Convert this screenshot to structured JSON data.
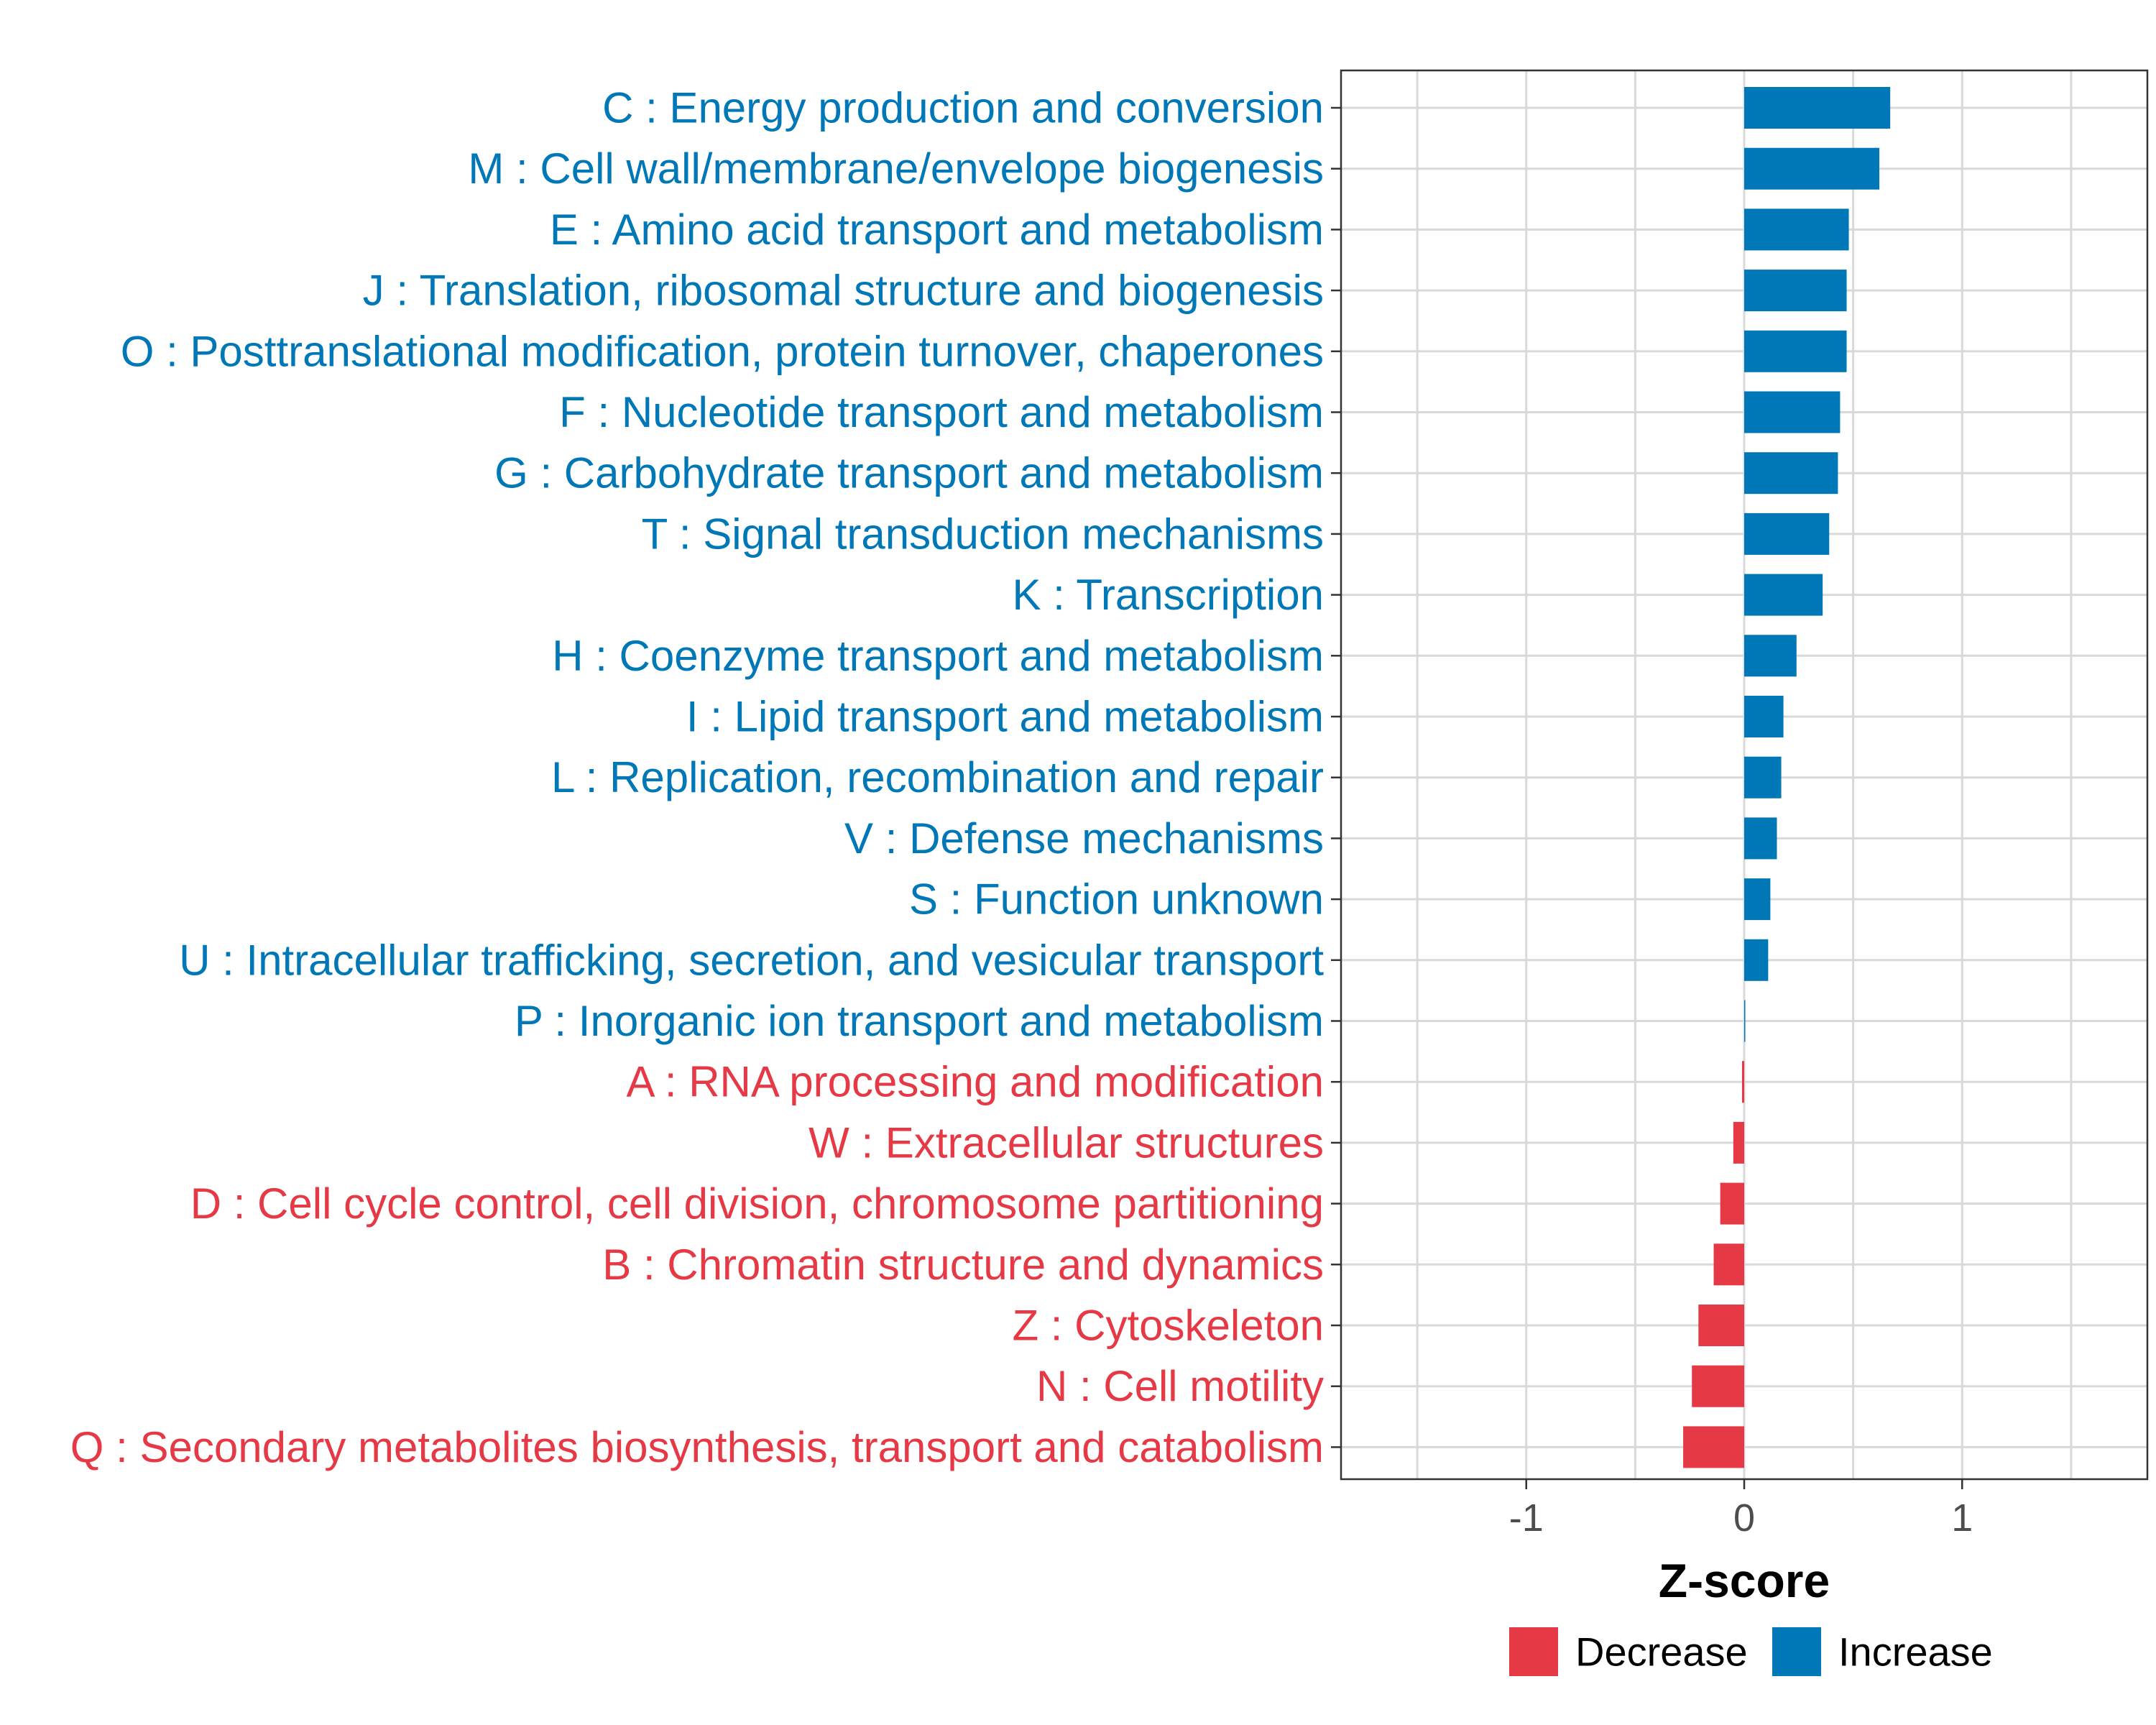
{
  "chart_data": {
    "type": "bar",
    "orientation": "horizontal",
    "title": "",
    "xlabel": "Z-score",
    "ylabel": "",
    "xlim": [
      -1.85,
      1.85
    ],
    "xticks": [
      -1,
      0,
      1
    ],
    "xtick_labels": [
      "-1",
      "0",
      "1"
    ],
    "grid": true,
    "legend_position": "bottom",
    "colors": {
      "Decrease": "#e63946",
      "Increase": "#0077b6",
      "grid": "#d9d9d9",
      "tick_text": "#4d4d4d"
    },
    "legend": [
      {
        "name": "Decrease",
        "color": "#e63946"
      },
      {
        "name": "Increase",
        "color": "#0077b6"
      }
    ],
    "categories": [
      "C : Energy production and conversion",
      "M : Cell wall/membrane/envelope biogenesis",
      "E : Amino acid transport and metabolism",
      "J : Translation, ribosomal structure and biogenesis",
      "O : Posttranslational modification, protein turnover, chaperones",
      "F : Nucleotide transport and metabolism",
      "G : Carbohydrate transport and metabolism",
      "T : Signal transduction mechanisms",
      "K : Transcription",
      "H : Coenzyme transport and metabolism",
      "I : Lipid transport and metabolism",
      "L : Replication, recombination and repair",
      "V : Defense mechanisms",
      "S : Function unknown",
      "U : Intracellular trafficking, secretion, and vesicular transport",
      "P : Inorganic ion transport and metabolism",
      "A : RNA processing and modification",
      "W : Extracellular structures",
      "D : Cell cycle control, cell division, chromosome partitioning",
      "B : Chromatin structure and dynamics",
      "Z : Cytoskeleton",
      "N : Cell motility",
      "Q : Secondary metabolites biosynthesis, transport and catabolism"
    ],
    "values": [
      0.67,
      0.62,
      0.48,
      0.47,
      0.47,
      0.44,
      0.43,
      0.39,
      0.36,
      0.24,
      0.18,
      0.17,
      0.15,
      0.12,
      0.11,
      0.005,
      -0.01,
      -0.05,
      -0.11,
      -0.14,
      -0.21,
      -0.24,
      -0.28
    ],
    "groups": [
      "Increase",
      "Increase",
      "Increase",
      "Increase",
      "Increase",
      "Increase",
      "Increase",
      "Increase",
      "Increase",
      "Increase",
      "Increase",
      "Increase",
      "Increase",
      "Increase",
      "Increase",
      "Increase",
      "Decrease",
      "Decrease",
      "Decrease",
      "Decrease",
      "Decrease",
      "Decrease",
      "Decrease"
    ]
  }
}
